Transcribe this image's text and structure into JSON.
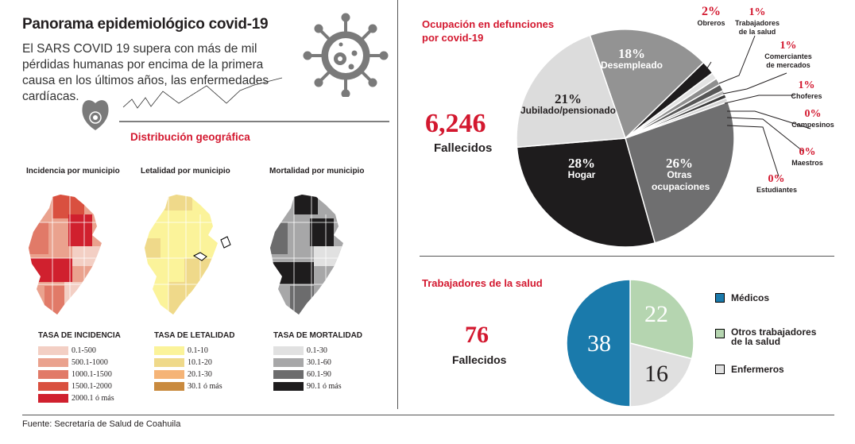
{
  "header": {
    "title": "Panorama epidemiológico covid-19",
    "intro": "El SARS COVID 19 supera con más de mil pérdidas humanas por encima de la primera causa en los últimos años, las enfermedades cardíacas."
  },
  "geo": {
    "section_title": "Distribución geográfica",
    "maps": [
      {
        "title": "Incidencia por municipio",
        "legend_title": "TASA DE INCIDENCIA",
        "legend": [
          {
            "label": "0.1-500",
            "color": "#f3cfc4"
          },
          {
            "label": "500.1-1000",
            "color": "#eaa28e"
          },
          {
            "label": "1000.1-1500",
            "color": "#e17a68"
          },
          {
            "label": "1500.1-2000",
            "color": "#d9503f"
          },
          {
            "label": "2000.1 ó más",
            "color": "#d0202e"
          }
        ]
      },
      {
        "title": "Letalidad por municipio",
        "legend_title": "TASA DE LETALIDAD",
        "legend": [
          {
            "label": "0.1-10",
            "color": "#fbf39a"
          },
          {
            "label": "10.1-20",
            "color": "#efd98a"
          },
          {
            "label": "20.1-30",
            "color": "#f5b477"
          },
          {
            "label": "30.1 ó más",
            "color": "#c98a3e"
          }
        ]
      },
      {
        "title": "Mortalidad por municipio",
        "legend_title": "TASA DE MORTALIDAD",
        "legend": [
          {
            "label": "0.1-30",
            "color": "#e1e1e1"
          },
          {
            "label": "30.1-60",
            "color": "#a7a7a8"
          },
          {
            "label": "60.1-90",
            "color": "#6c6c6d"
          },
          {
            "label": "90.1 ó más",
            "color": "#1e1c1d"
          }
        ]
      }
    ]
  },
  "deaths": {
    "title_line1": "Ocupación en defunciones",
    "title_line2": "por covid-19",
    "total": "6,246",
    "total_label": "Fallecidos"
  },
  "health": {
    "title": "Trabajadores de la salud",
    "total": "76",
    "total_label": "Fallecidos"
  },
  "footer": {
    "source": "Fuente: Secretaría de Salud de Coahuila"
  },
  "chart_data": [
    {
      "type": "pie",
      "title": "Ocupación en defunciones por covid-19",
      "unit": "%",
      "categories": [
        "Desempleado",
        "Obreros",
        "Trabajadores de la salud",
        "Comerciantes de mercados",
        "Choferes",
        "Campesinos",
        "Maestros",
        "Estudiantes",
        "Otras ocupaciones",
        "Hogar",
        "Jubilado/pensionado"
      ],
      "values": [
        18,
        2,
        1,
        1,
        1,
        0,
        0,
        0,
        26,
        28,
        21
      ],
      "labels": [
        "18%",
        "2%",
        "1%",
        "1%",
        "1%",
        "0%",
        "0%",
        "0%",
        "26%",
        "28%",
        "21%"
      ],
      "colors": [
        "#939393",
        "#1e1c1d",
        "#e3e3e3",
        "#8e8e8e",
        "#575757",
        "#b5b5b5",
        "#3a3a3a",
        "#d6d6d6",
        "#6f6f70",
        "#1e1c1d",
        "#dcdcdc"
      ]
    },
    {
      "type": "pie",
      "title": "Trabajadores de la salud",
      "categories": [
        "Otros trabajadores de la salud",
        "Enfermeros",
        "Médicos"
      ],
      "values": [
        22,
        16,
        38
      ],
      "labels": [
        "22",
        "16",
        "38"
      ],
      "colors": [
        "#b5d5b0",
        "#e0e0e0",
        "#1a7aab"
      ]
    }
  ]
}
